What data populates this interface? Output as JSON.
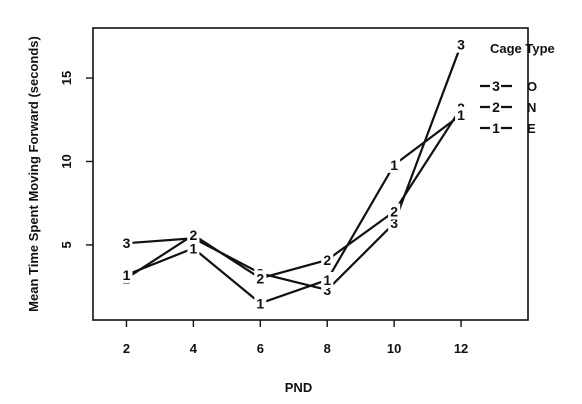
{
  "chart_data": {
    "type": "line",
    "xlabel": "PND",
    "ylabel": "Mean Time Spent Moving Forward (seconds)",
    "xlim": [
      1,
      14
    ],
    "ylim": [
      0.5,
      18
    ],
    "x_ticks": [
      2,
      4,
      6,
      8,
      10,
      12
    ],
    "y_ticks": [
      5,
      10,
      15
    ],
    "x": [
      2,
      4,
      6,
      8,
      10,
      12
    ],
    "legend": {
      "title": "Cage Type",
      "placement": "top-right"
    },
    "series": [
      {
        "name": "O",
        "marker": "3",
        "values": [
          5.1,
          5.4,
          3.3,
          2.3,
          6.3,
          17.0
        ]
      },
      {
        "name": "N",
        "marker": "2",
        "values": [
          3.0,
          5.6,
          3.0,
          4.1,
          7.0,
          13.2
        ]
      },
      {
        "name": "E",
        "marker": "1",
        "values": [
          3.2,
          4.8,
          1.5,
          2.9,
          9.8,
          12.8
        ]
      }
    ]
  }
}
